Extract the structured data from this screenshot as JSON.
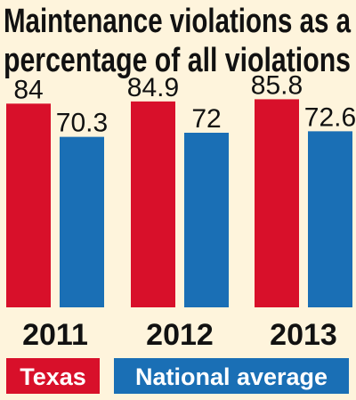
{
  "chart_data": {
    "type": "bar",
    "title_lines": [
      "Maintenance violations as a",
      "percentage of all violations"
    ],
    "categories": [
      "2011",
      "2012",
      "2013"
    ],
    "series": [
      {
        "name": "Texas",
        "color": "#d8102a",
        "values": [
          84,
          84.9,
          85.8
        ]
      },
      {
        "name": "National average",
        "color": "#1a6fb5",
        "values": [
          70.3,
          72,
          72.6
        ]
      }
    ],
    "value_labels": [
      [
        "84",
        "84.9",
        "85.8"
      ],
      [
        "70.3",
        "72",
        "72.6"
      ]
    ],
    "ylim": [
      0,
      90
    ],
    "xlabel": "",
    "ylabel": "",
    "grid": false,
    "legend_position": "bottom"
  }
}
